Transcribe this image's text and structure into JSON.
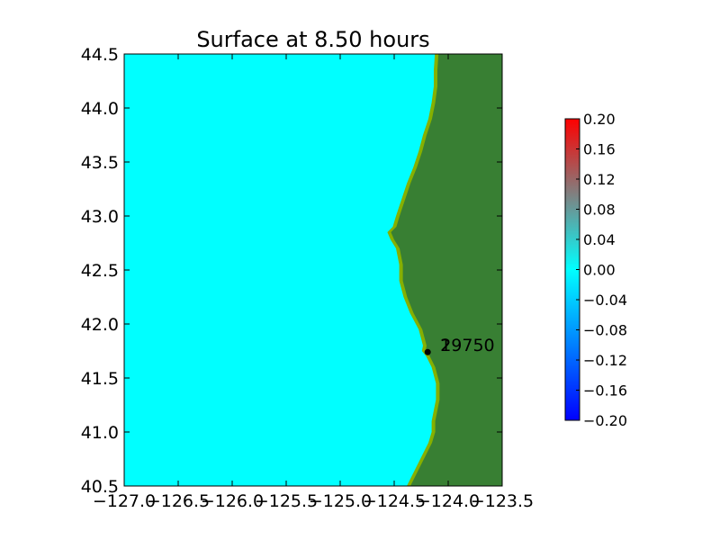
{
  "chart_data": {
    "type": "heatmap",
    "title": "Surface at 8.50 hours",
    "xlabel": "",
    "ylabel": "",
    "xlim": [
      -127.0,
      -123.5
    ],
    "ylim": [
      40.5,
      44.5
    ],
    "xticks": [
      "−127.0",
      "−126.5",
      "−126.0",
      "−125.5",
      "−125.0",
      "−124.5",
      "−124.0",
      "−123.5"
    ],
    "yticks": [
      "40.5",
      "41.0",
      "41.5",
      "42.0",
      "42.5",
      "43.0",
      "43.5",
      "44.0",
      "44.5"
    ],
    "colorbar": {
      "min": -0.2,
      "max": 0.2,
      "ticks": [
        "−0.20",
        "−0.16",
        "−0.12",
        "−0.08",
        "−0.04",
        "0.00",
        "0.04",
        "0.08",
        "0.12",
        "0.16",
        "0.20"
      ],
      "colors": [
        "#0000ff",
        "#00ffff",
        "#808080",
        "#ff0000"
      ]
    },
    "ocean_value": 0.0,
    "colors": {
      "ocean": "#00ffff",
      "land": "#387f33",
      "shore": "#85b000"
    },
    "coastline": [
      [
        44.5,
        -124.09
      ],
      [
        44.35,
        -124.1
      ],
      [
        44.2,
        -124.1
      ],
      [
        44.05,
        -124.12
      ],
      [
        43.9,
        -124.15
      ],
      [
        43.75,
        -124.2
      ],
      [
        43.6,
        -124.24
      ],
      [
        43.45,
        -124.29
      ],
      [
        43.3,
        -124.35
      ],
      [
        43.15,
        -124.4
      ],
      [
        43.0,
        -124.45
      ],
      [
        42.9,
        -124.48
      ],
      [
        42.85,
        -124.53
      ],
      [
        42.78,
        -124.5
      ],
      [
        42.7,
        -124.45
      ],
      [
        42.55,
        -124.42
      ],
      [
        42.4,
        -124.42
      ],
      [
        42.25,
        -124.38
      ],
      [
        42.1,
        -124.32
      ],
      [
        41.95,
        -124.24
      ],
      [
        41.8,
        -124.2
      ],
      [
        41.75,
        -124.21
      ],
      [
        41.7,
        -124.17
      ],
      [
        41.6,
        -124.12
      ],
      [
        41.45,
        -124.08
      ],
      [
        41.3,
        -124.08
      ],
      [
        41.2,
        -124.1
      ],
      [
        41.1,
        -124.12
      ],
      [
        41.0,
        -124.12
      ],
      [
        40.9,
        -124.15
      ],
      [
        40.8,
        -124.2
      ],
      [
        40.7,
        -124.25
      ],
      [
        40.6,
        -124.3
      ],
      [
        40.5,
        -124.35
      ]
    ],
    "station": {
      "lon": -124.19,
      "lat": 41.74,
      "labels": [
        "1",
        "2",
        "29750"
      ]
    }
  }
}
